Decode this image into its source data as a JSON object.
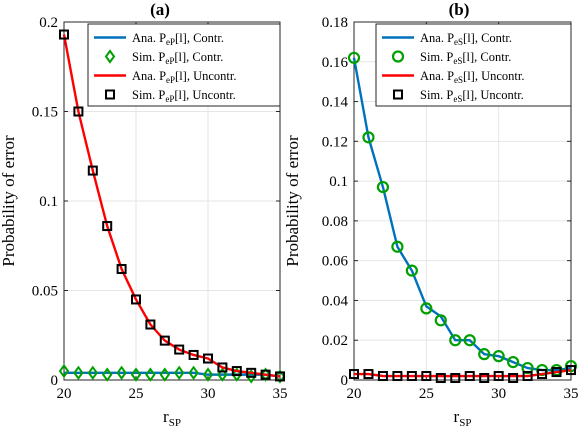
{
  "chart_data": [
    {
      "type": "line",
      "title": "(a)",
      "xlabel": "r",
      "xlabel_sub": "SP",
      "ylabel": "Probability of error",
      "xlim": [
        20,
        35
      ],
      "ylim": [
        0,
        0.2
      ],
      "xticks": [
        20,
        25,
        30,
        35
      ],
      "yticks": [
        0,
        0.05,
        0.1,
        0.15,
        0.2
      ],
      "ytick_labels": [
        "0",
        "0.05",
        "0.1",
        "0.15",
        "0.2"
      ],
      "grid": true,
      "legend_position": "top-right",
      "x": [
        20,
        21,
        22,
        23,
        24,
        25,
        26,
        27,
        28,
        29,
        30,
        31,
        32,
        33,
        34,
        35
      ],
      "series": [
        {
          "legend": [
            "Ana. P",
            "eP",
            "[l], Contr."
          ],
          "style": "line",
          "color": "#0072BD",
          "values": [
            0.004,
            0.004,
            0.004,
            0.004,
            0.004,
            0.004,
            0.004,
            0.004,
            0.004,
            0.004,
            0.003,
            0.003,
            0.003,
            0.003,
            0.003,
            0.002
          ]
        },
        {
          "legend": [
            "Sim. P",
            "eP",
            "[l], Contr."
          ],
          "style": "diamond",
          "color": "#00A000",
          "values": [
            0.005,
            0.004,
            0.004,
            0.003,
            0.004,
            0.003,
            0.003,
            0.003,
            0.004,
            0.004,
            0.003,
            0.003,
            0.003,
            0.002,
            0.003,
            0.002
          ]
        },
        {
          "legend": [
            "Ana. P",
            "eP",
            "[l], Uncontr."
          ],
          "style": "line",
          "color": "#FF0000",
          "values": [
            0.193,
            0.15,
            0.117,
            0.086,
            0.062,
            0.045,
            0.031,
            0.022,
            0.017,
            0.014,
            0.012,
            0.007,
            0.005,
            0.004,
            0.003,
            0.002
          ]
        },
        {
          "legend": [
            "Sim. P",
            "eP",
            "[l], Uncontr."
          ],
          "style": "square",
          "color": "#000000",
          "values": [
            0.193,
            0.15,
            0.117,
            0.086,
            0.062,
            0.045,
            0.031,
            0.022,
            0.017,
            0.014,
            0.012,
            0.007,
            0.005,
            0.004,
            0.003,
            0.002
          ]
        }
      ]
    },
    {
      "type": "line",
      "title": "(b)",
      "xlabel": "r",
      "xlabel_sub": "SP",
      "ylabel": "Probability of error",
      "xlim": [
        20,
        35
      ],
      "ylim": [
        0,
        0.18
      ],
      "xticks": [
        20,
        25,
        30,
        35
      ],
      "yticks": [
        0,
        0.02,
        0.04,
        0.06,
        0.08,
        0.1,
        0.12,
        0.14,
        0.16,
        0.18
      ],
      "ytick_labels": [
        "0",
        "0.02",
        "0.04",
        "0.06",
        "0.08",
        "0.1",
        "0.12",
        "0.14",
        "0.16",
        "0.18"
      ],
      "grid": true,
      "legend_position": "top-right",
      "x": [
        20,
        21,
        22,
        23,
        24,
        25,
        26,
        27,
        28,
        29,
        30,
        31,
        32,
        33,
        34,
        35
      ],
      "series": [
        {
          "legend": [
            "Ana. P",
            "eS",
            "[l], Contr."
          ],
          "style": "line",
          "color": "#0072BD",
          "values": [
            0.162,
            0.122,
            0.097,
            0.067,
            0.055,
            0.037,
            0.032,
            0.02,
            0.02,
            0.013,
            0.012,
            0.009,
            0.006,
            0.005,
            0.005,
            0.006
          ]
        },
        {
          "legend": [
            "Sim. P",
            "eS",
            "[l], Contr."
          ],
          "style": "circle",
          "color": "#00A000",
          "values": [
            0.162,
            0.122,
            0.097,
            0.067,
            0.055,
            0.036,
            0.03,
            0.02,
            0.02,
            0.013,
            0.012,
            0.009,
            0.006,
            0.005,
            0.005,
            0.007
          ]
        },
        {
          "legend": [
            "Ana. P",
            "eS",
            "[l], Uncontr."
          ],
          "style": "line",
          "color": "#FF0000",
          "values": [
            0.003,
            0.003,
            0.002,
            0.002,
            0.002,
            0.002,
            0.002,
            0.002,
            0.002,
            0.002,
            0.002,
            0.002,
            0.002,
            0.003,
            0.004,
            0.005
          ]
        },
        {
          "legend": [
            "Sim. P",
            "eS",
            "[l], Uncontr."
          ],
          "style": "square",
          "color": "#000000",
          "values": [
            0.003,
            0.003,
            0.002,
            0.002,
            0.002,
            0.002,
            0.001,
            0.001,
            0.002,
            0.001,
            0.002,
            0.001,
            0.002,
            0.003,
            0.004,
            0.005
          ]
        }
      ]
    }
  ]
}
